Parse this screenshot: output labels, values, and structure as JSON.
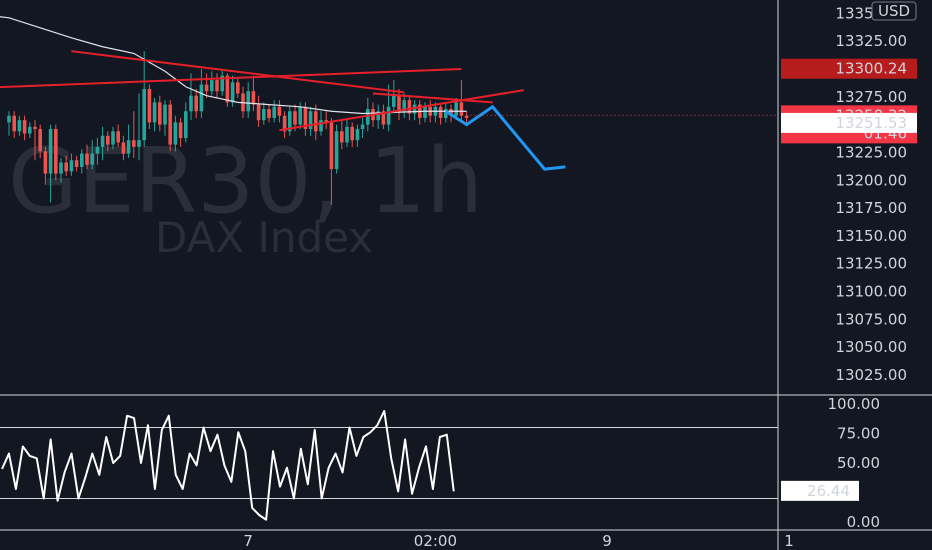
{
  "chart_data": {
    "type": "candlestick",
    "symbol_watermark": "GER30, 1h",
    "description_watermark": "DAX Index",
    "currency": "USD",
    "price_axis": {
      "ylim": [
        13007,
        13362
      ],
      "ticks": [
        "13350.00",
        "13325.00",
        "13300.00",
        "13275.00",
        "13250.00",
        "13225.00",
        "13200.00",
        "13175.00",
        "13150.00",
        "13125.00",
        "13100.00",
        "13075.00",
        "13050.00",
        "13025.00"
      ]
    },
    "price_labels": {
      "upper_line": "13300.24",
      "last_price": "13258.32",
      "countdown": "01:46",
      "marker": "13251.53"
    },
    "x_labels": [
      {
        "text": "7",
        "bar": 46
      },
      {
        "text": "02:00",
        "bar": 82
      },
      {
        "text": "9",
        "bar": 115
      },
      {
        "text": "1",
        "bar": 150
      }
    ],
    "candles": [
      [
        13252,
        13258,
        13240,
        13262
      ],
      [
        13258,
        13244,
        13238,
        13262
      ],
      [
        13244,
        13254,
        13240,
        13258
      ],
      [
        13254,
        13242,
        13236,
        13258
      ],
      [
        13242,
        13248,
        13238,
        13252
      ],
      [
        13248,
        13246,
        13218,
        13254
      ],
      [
        13246,
        13226,
        13220,
        13250
      ],
      [
        13226,
        13206,
        13196,
        13230
      ],
      [
        13206,
        13246,
        13180,
        13250
      ],
      [
        13246,
        13206,
        13200,
        13250
      ],
      [
        13206,
        13216,
        13198,
        13220
      ],
      [
        13216,
        13208,
        13204,
        13222
      ],
      [
        13208,
        13218,
        13204,
        13224
      ],
      [
        13218,
        13212,
        13208,
        13222
      ],
      [
        13212,
        13224,
        13206,
        13228
      ],
      [
        13224,
        13214,
        13210,
        13232
      ],
      [
        13214,
        13224,
        13210,
        13236
      ],
      [
        13224,
        13230,
        13214,
        13238
      ],
      [
        13230,
        13240,
        13218,
        13248
      ],
      [
        13240,
        13232,
        13226,
        13244
      ],
      [
        13232,
        13244,
        13228,
        13248
      ],
      [
        13244,
        13234,
        13230,
        13250
      ],
      [
        13234,
        13224,
        13218,
        13240
      ],
      [
        13224,
        13236,
        13220,
        13250
      ],
      [
        13236,
        13230,
        13220,
        13262
      ],
      [
        13230,
        13236,
        13218,
        13278
      ],
      [
        13236,
        13282,
        13230,
        13316
      ],
      [
        13282,
        13252,
        13246,
        13286
      ],
      [
        13252,
        13270,
        13244,
        13274
      ],
      [
        13270,
        13250,
        13244,
        13276
      ],
      [
        13250,
        13268,
        13240,
        13272
      ],
      [
        13268,
        13232,
        13226,
        13272
      ],
      [
        13232,
        13252,
        13226,
        13258
      ],
      [
        13252,
        13238,
        13230,
        13256
      ],
      [
        13238,
        13262,
        13234,
        13270
      ],
      [
        13262,
        13276,
        13254,
        13296
      ],
      [
        13276,
        13262,
        13256,
        13282
      ],
      [
        13262,
        13286,
        13256,
        13300
      ],
      [
        13286,
        13280,
        13274,
        13296
      ],
      [
        13280,
        13290,
        13276,
        13298
      ],
      [
        13290,
        13280,
        13274,
        13296
      ],
      [
        13280,
        13294,
        13276,
        13300
      ],
      [
        13294,
        13270,
        13266,
        13296
      ],
      [
        13270,
        13288,
        13266,
        13294
      ],
      [
        13288,
        13278,
        13274,
        13292
      ],
      [
        13278,
        13262,
        13256,
        13284
      ],
      [
        13262,
        13280,
        13256,
        13288
      ],
      [
        13280,
        13268,
        13262,
        13294
      ],
      [
        13268,
        13254,
        13248,
        13276
      ],
      [
        13254,
        13264,
        13250,
        13270
      ],
      [
        13264,
        13256,
        13252,
        13268
      ],
      [
        13256,
        13266,
        13252,
        13272
      ],
      [
        13266,
        13258,
        13252,
        13272
      ],
      [
        13258,
        13244,
        13238,
        13262
      ],
      [
        13244,
        13262,
        13240,
        13266
      ],
      [
        13262,
        13250,
        13244,
        13268
      ],
      [
        13250,
        13266,
        13246,
        13270
      ],
      [
        13266,
        13246,
        13240,
        13270
      ],
      [
        13246,
        13262,
        13240,
        13266
      ],
      [
        13262,
        13244,
        13236,
        13268
      ],
      [
        13244,
        13254,
        13240,
        13262
      ],
      [
        13254,
        13252,
        13246,
        13262
      ],
      [
        13252,
        13210,
        13178,
        13256
      ],
      [
        13210,
        13244,
        13206,
        13250
      ],
      [
        13244,
        13234,
        13228,
        13254
      ],
      [
        13234,
        13248,
        13230,
        13254
      ],
      [
        13248,
        13236,
        13230,
        13252
      ],
      [
        13236,
        13246,
        13230,
        13250
      ],
      [
        13246,
        13250,
        13238,
        13256
      ],
      [
        13250,
        13264,
        13244,
        13274
      ],
      [
        13264,
        13254,
        13248,
        13270
      ],
      [
        13254,
        13262,
        13246,
        13268
      ],
      [
        13262,
        13250,
        13246,
        13268
      ],
      [
        13250,
        13266,
        13244,
        13286
      ],
      [
        13266,
        13276,
        13260,
        13290
      ],
      [
        13276,
        13262,
        13254,
        13282
      ],
      [
        13262,
        13272,
        13256,
        13278
      ],
      [
        13272,
        13260,
        13254,
        13276
      ],
      [
        13260,
        13268,
        13254,
        13272
      ],
      [
        13268,
        13256,
        13250,
        13272
      ],
      [
        13256,
        13266,
        13252,
        13270
      ],
      [
        13266,
        13258,
        13252,
        13272
      ],
      [
        13258,
        13266,
        13252,
        13270
      ],
      [
        13266,
        13256,
        13250,
        13268
      ],
      [
        13256,
        13264,
        13252,
        13270
      ],
      [
        13264,
        13258,
        13252,
        13268
      ],
      [
        13258,
        13270,
        13254,
        13274
      ],
      [
        13270,
        13258,
        13254,
        13290
      ],
      [
        13258,
        13256,
        13250,
        13262
      ]
    ],
    "moving_average": [
      [
        -11,
        13352
      ],
      [
        0,
        13346
      ],
      [
        6,
        13337
      ],
      [
        12,
        13328
      ],
      [
        18,
        13320
      ],
      [
        24,
        13314
      ],
      [
        30,
        13298
      ],
      [
        34,
        13284
      ],
      [
        38,
        13276
      ],
      [
        44,
        13270
      ],
      [
        50,
        13268
      ],
      [
        56,
        13266
      ],
      [
        62,
        13262
      ],
      [
        68,
        13260
      ],
      [
        74,
        13261
      ],
      [
        80,
        13262
      ],
      [
        86,
        13262
      ],
      [
        88,
        13262
      ]
    ],
    "drawings": {
      "red_lines": [
        {
          "from": [
            12,
            13316
          ],
          "to": [
            76,
            13279
          ]
        },
        {
          "from": [
            -11,
            13282
          ],
          "to": [
            87,
            13300
          ]
        },
        {
          "from": [
            52,
            13245
          ],
          "to": [
            99,
            13281
          ]
        },
        {
          "from": [
            70,
            13278
          ],
          "to": [
            93,
            13270
          ]
        }
      ],
      "blue_projection": [
        [
          84,
          13262
        ],
        [
          88,
          13250
        ],
        [
          93,
          13266
        ],
        [
          103,
          13210
        ],
        [
          107,
          13212
        ]
      ]
    },
    "oscillator": {
      "ylim": [
        -5,
        105
      ],
      "ticks": [
        "100.00",
        "75.00",
        "50.00",
        "0.00"
      ],
      "bands": [
        80,
        20
      ],
      "current": "26.44",
      "values": [
        45,
        58,
        28,
        64,
        56,
        54,
        20,
        70,
        18,
        42,
        58,
        20,
        38,
        58,
        40,
        72,
        50,
        56,
        90,
        88,
        50,
        82,
        28,
        78,
        90,
        40,
        28,
        58,
        48,
        80,
        60,
        74,
        48,
        34,
        76,
        60,
        12,
        6,
        2,
        60,
        30,
        46,
        20,
        62,
        32,
        78,
        20,
        46,
        58,
        42,
        80,
        56,
        72,
        76,
        82,
        94,
        54,
        26,
        70,
        24,
        46,
        64,
        28,
        72,
        74,
        26
      ]
    }
  }
}
